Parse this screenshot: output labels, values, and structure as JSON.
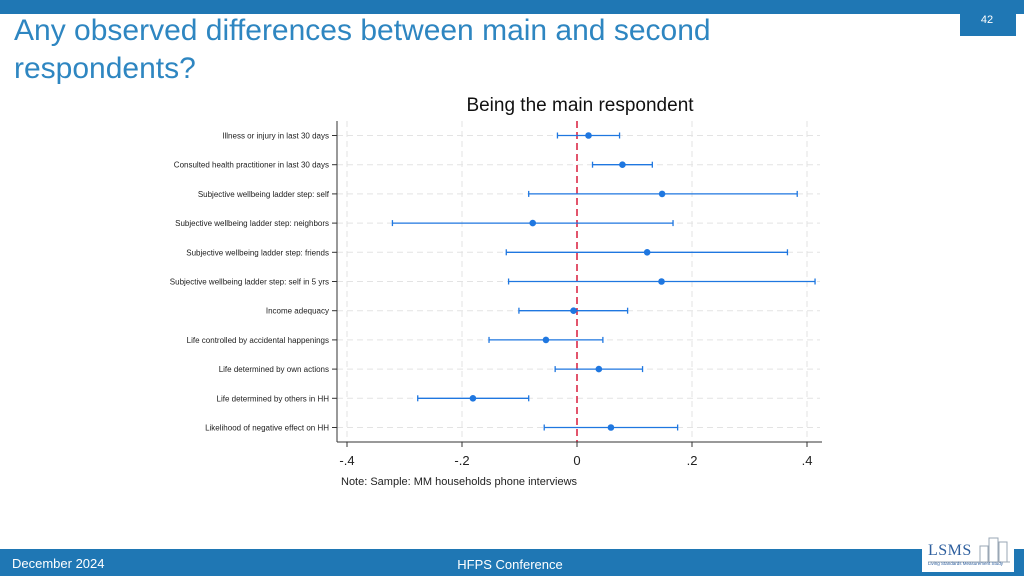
{
  "slide": {
    "title": "Any observed differences between main and second respondents?",
    "page_number": "42",
    "footer_date": "December 2024",
    "footer_center": "HFPS Conference",
    "logo_text": "LSMS",
    "logo_subtext": "Living Standards Measurement Study"
  },
  "chart_data": {
    "type": "scatter",
    "title": "Being the main respondent",
    "note": "Note: Sample: MM households phone interviews",
    "xlim": [
      -0.4,
      0.4
    ],
    "xticks": [
      -0.4,
      -0.2,
      0,
      0.2,
      0.4
    ],
    "xtick_labels": [
      "-.4",
      "-.2",
      "0",
      ".2",
      ".4"
    ],
    "reference_line": 0,
    "grid": true,
    "colors": {
      "marker": "#1f77e0",
      "reference": "#d81b3c",
      "grid": "#e3e3e3"
    },
    "categories": [
      "Illness or injury in last 30 days",
      "Consulted health practitioner in last 30 days",
      "Subjective wellbeing ladder step: self",
      "Subjective wellbeing ladder step: neighbors",
      "Subjective wellbeing ladder step: friends",
      "Subjective wellbeing ladder step: self in 5 yrs",
      "Income adequacy",
      "Life controlled by accidental happenings",
      "Life determined by own actions",
      "Life determined by others in HH",
      "Likelihood of negative effect on HH"
    ],
    "estimates": [
      0.02,
      0.079,
      0.148,
      -0.077,
      0.122,
      0.147,
      -0.006,
      -0.054,
      0.038,
      -0.181,
      0.059
    ],
    "ci_low": [
      -0.034,
      0.027,
      -0.084,
      -0.321,
      -0.123,
      -0.119,
      -0.101,
      -0.153,
      -0.038,
      -0.277,
      -0.057
    ],
    "ci_high": [
      0.074,
      0.131,
      0.383,
      0.167,
      0.366,
      0.414,
      0.088,
      0.045,
      0.114,
      -0.084,
      0.175
    ]
  }
}
